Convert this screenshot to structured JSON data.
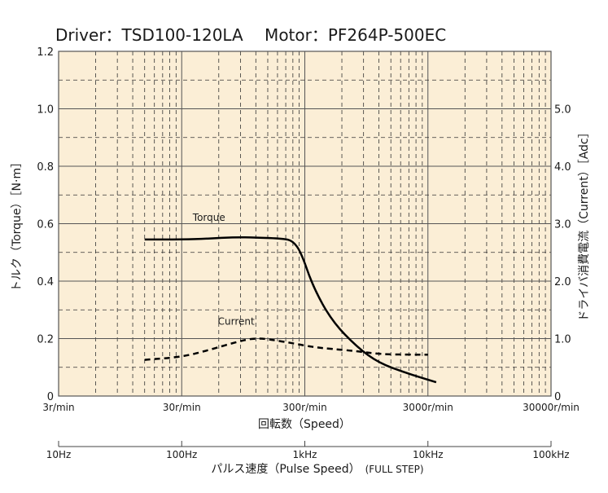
{
  "chart_data": {
    "type": "line",
    "title": "Driver：TSD100-120LA　 Motor：PF264P-500EC",
    "x_scale": "log",
    "xlim": [
      3,
      30000
    ],
    "xlabel": "回転数（Speed）",
    "x_ticks": [
      3,
      30,
      300,
      3000,
      30000
    ],
    "x_tick_labels": [
      "3r/min",
      "30r/min",
      "300r/min",
      "3000r/min",
      "30000r/min"
    ],
    "ylabel_left": "トルク（Torque）［N·m］",
    "ylim_left": [
      0,
      1.2
    ],
    "y_tick_labels_left": [
      "0",
      "0.2",
      "0.4",
      "0.6",
      "0.8",
      "1.0",
      "1.2"
    ],
    "y_ticks_left": [
      0,
      0.2,
      0.4,
      0.6,
      0.8,
      1.0,
      1.2
    ],
    "ylabel_right": "ドライバ消費電流（Current）［Adc］",
    "ylim_right": [
      0,
      6.0
    ],
    "y_tick_labels_right": [
      "0",
      "1.0",
      "2.0",
      "3.0",
      "4.0",
      "5.0"
    ],
    "y_ticks_right": [
      0,
      1.0,
      2.0,
      3.0,
      4.0,
      5.0
    ],
    "pulse_axis": {
      "label": "パルス速度（Pulse Speed）",
      "label_note": "(FULL STEP)",
      "tick_labels": [
        "10Hz",
        "100Hz",
        "1kHz",
        "10kHz",
        "100kHz"
      ],
      "ticks_hz": [
        10,
        100,
        1000,
        10000,
        100000
      ],
      "speed_per_hz": 0.3
    },
    "grid": true,
    "background": "#fbeed6",
    "series": [
      {
        "name": "Torque",
        "axis": "left",
        "line_style": "solid",
        "color": "#000000",
        "x": [
          15,
          30,
          50,
          80,
          120,
          200,
          240,
          280,
          350,
          500,
          800,
          1200,
          2000,
          3500
        ],
        "y": [
          0.545,
          0.545,
          0.548,
          0.553,
          0.552,
          0.548,
          0.54,
          0.5,
          0.38,
          0.26,
          0.17,
          0.115,
          0.08,
          0.048
        ]
      },
      {
        "name": "Current",
        "axis": "right",
        "line_style": "dashed",
        "color": "#000000",
        "x": [
          15,
          30,
          50,
          80,
          120,
          200,
          350,
          500,
          800,
          1200,
          2000,
          3000
        ],
        "y": [
          0.63,
          0.68,
          0.8,
          0.93,
          1.02,
          0.95,
          0.85,
          0.82,
          0.78,
          0.73,
          0.72,
          0.72
        ]
      }
    ]
  }
}
